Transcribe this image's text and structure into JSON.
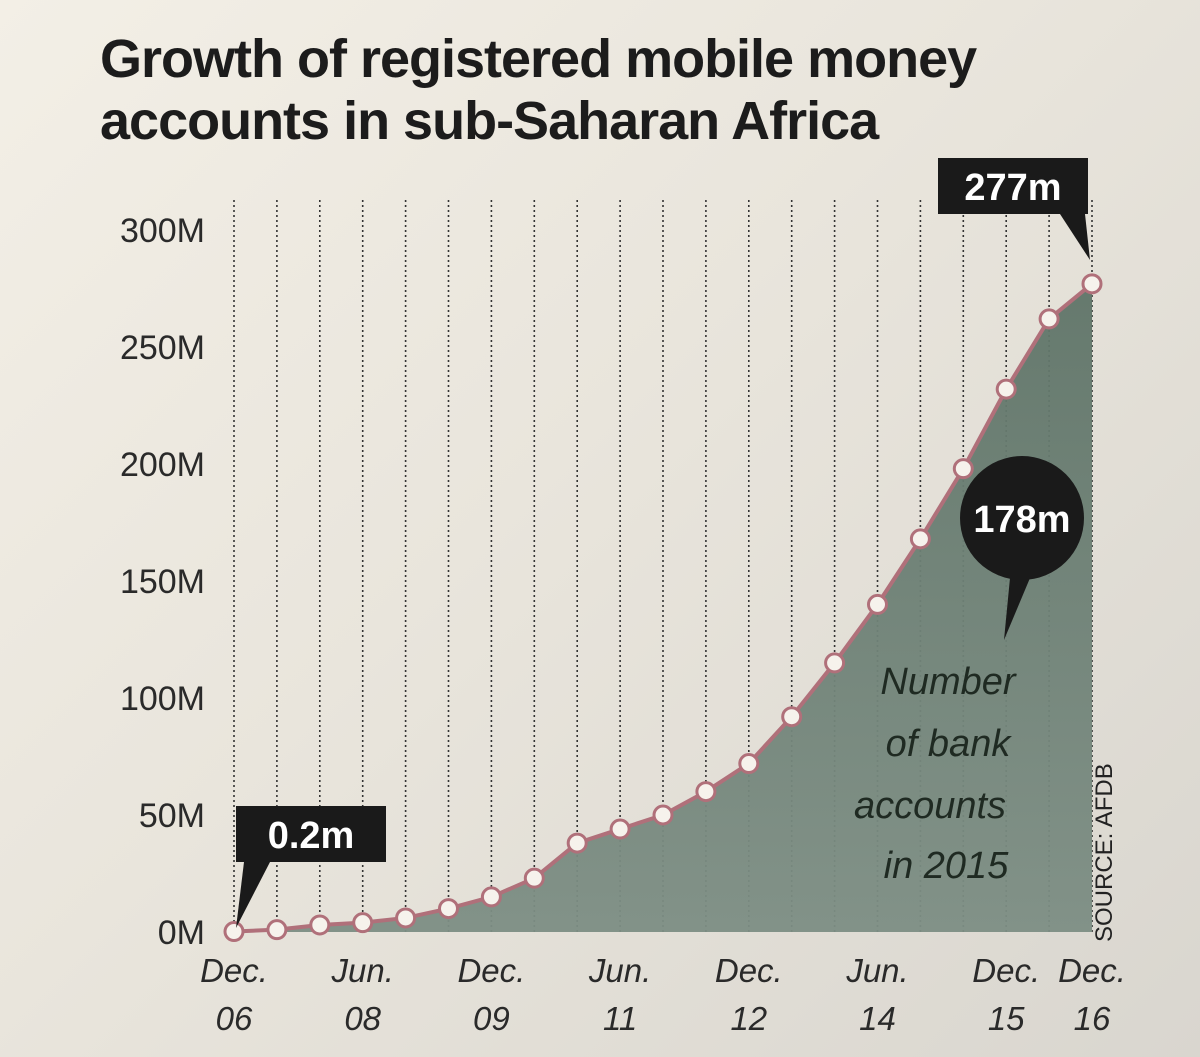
{
  "chart_data": {
    "type": "area",
    "title": "Growth of registered mobile money accounts in sub-Saharan Africa",
    "xlabel": "",
    "ylabel": "",
    "ylim": [
      0,
      300
    ],
    "y_ticks": [
      "0M",
      "50M",
      "100M",
      "150M",
      "200M",
      "250M",
      "300M"
    ],
    "x_tick_labels": [
      {
        "line1": "Dec.",
        "line2": "06",
        "index": 0
      },
      {
        "line1": "Jun.",
        "line2": "08",
        "index": 3
      },
      {
        "line1": "Dec.",
        "line2": "09",
        "index": 6
      },
      {
        "line1": "Jun.",
        "line2": "11",
        "index": 9
      },
      {
        "line1": "Dec.",
        "line2": "12",
        "index": 12
      },
      {
        "line1": "Jun.",
        "line2": "14",
        "index": 15
      },
      {
        "line1": "Dec.",
        "line2": "15",
        "index": 18
      },
      {
        "line1": "Dec.",
        "line2": "16",
        "index": 20
      }
    ],
    "series": [
      {
        "values": [
          0.2,
          1,
          3,
          4,
          6,
          10,
          15,
          23,
          38,
          44,
          50,
          60,
          72,
          92,
          115,
          140,
          168,
          198,
          232,
          262,
          277
        ]
      }
    ],
    "grid": "vertical dotted lines",
    "annotations": {
      "start_label": "0.2m",
      "end_label": "277m",
      "bank_value": "178m",
      "bank_note": [
        "Number",
        "of bank",
        "accounts",
        "in 2015"
      ],
      "source": "SOURCE: AFDB"
    },
    "colors": {
      "line": "#b0707a",
      "area": "#6b7f72",
      "callout": "#1a1a1a"
    }
  }
}
